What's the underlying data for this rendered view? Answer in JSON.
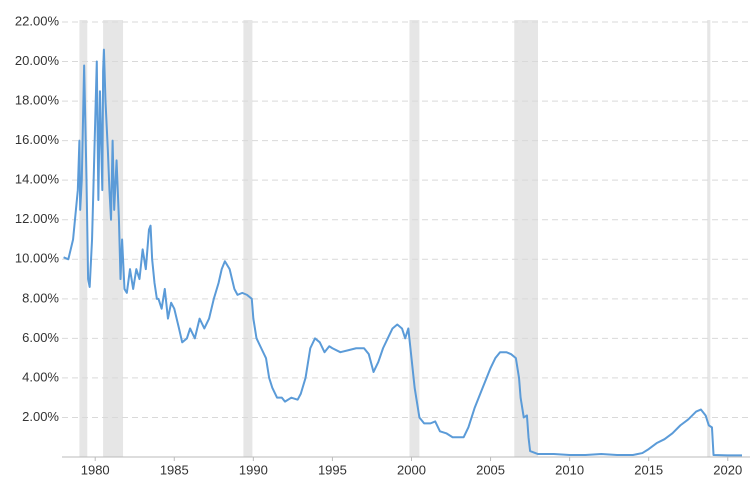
{
  "chart_data": {
    "type": "line",
    "x": [
      1978.0,
      1978.3,
      1978.6,
      1978.9,
      1979.0,
      1979.05,
      1979.15,
      1979.3,
      1979.45,
      1979.55,
      1979.65,
      1979.8,
      1980.0,
      1980.1,
      1980.2,
      1980.3,
      1980.45,
      1980.5,
      1980.55,
      1980.65,
      1980.8,
      1980.9,
      1981.0,
      1981.1,
      1981.2,
      1981.35,
      1981.5,
      1981.6,
      1981.7,
      1981.85,
      1982.0,
      1982.2,
      1982.4,
      1982.6,
      1982.8,
      1983.0,
      1983.2,
      1983.4,
      1983.5,
      1983.6,
      1983.75,
      1983.9,
      1984.0,
      1984.2,
      1984.4,
      1984.6,
      1984.8,
      1985.0,
      1985.3,
      1985.5,
      1985.8,
      1986.0,
      1986.3,
      1986.6,
      1986.9,
      1987.2,
      1987.5,
      1987.8,
      1988.0,
      1988.2,
      1988.5,
      1988.8,
      1989.0,
      1989.3,
      1989.6,
      1989.9,
      1990.0,
      1990.2,
      1990.5,
      1990.8,
      1991.0,
      1991.2,
      1991.5,
      1991.8,
      1992.0,
      1992.4,
      1992.8,
      1993.0,
      1993.3,
      1993.6,
      1993.9,
      1994.2,
      1994.5,
      1994.8,
      1995.0,
      1995.5,
      1996.0,
      1996.5,
      1997.0,
      1997.3,
      1997.6,
      1997.9,
      1998.2,
      1998.5,
      1998.8,
      1999.1,
      1999.4,
      1999.6,
      1999.8,
      2000.0,
      2000.2,
      2000.5,
      2000.8,
      2001.2,
      2001.5,
      2001.8,
      2002.2,
      2002.6,
      2003.0,
      2003.3,
      2003.6,
      2004.0,
      2004.5,
      2005.0,
      2005.3,
      2005.6,
      2006.0,
      2006.3,
      2006.6,
      2006.8,
      2006.9,
      2007.1,
      2007.3,
      2007.4,
      2007.5,
      2008.0,
      2009.0,
      2010.0,
      2011.0,
      2012.0,
      2013.0,
      2014.0,
      2014.6,
      2015.0,
      2015.5,
      2016.0,
      2016.5,
      2017.0,
      2017.5,
      2018.0,
      2018.3,
      2018.6,
      2018.8,
      2019.0,
      2019.1,
      2020.0,
      2020.9
    ],
    "series": [
      {
        "color": "#5b9bd8",
        "values": [
          10.1,
          10.0,
          11.0,
          13.5,
          16.0,
          12.5,
          14.0,
          19.8,
          14.0,
          9.0,
          8.6,
          11.0,
          17.0,
          20.0,
          13.0,
          18.5,
          13.5,
          19.5,
          20.6,
          18.0,
          15.5,
          13.5,
          12.0,
          16.0,
          12.5,
          15.0,
          12.0,
          9.0,
          11.0,
          8.5,
          8.3,
          9.5,
          8.5,
          9.5,
          9.0,
          10.5,
          9.5,
          11.5,
          11.7,
          10.0,
          8.8,
          8.0,
          8.0,
          7.5,
          8.5,
          7.0,
          7.8,
          7.5,
          6.5,
          5.8,
          6.0,
          6.5,
          6.0,
          7.0,
          6.5,
          7.0,
          8.0,
          8.8,
          9.5,
          9.9,
          9.5,
          8.5,
          8.2,
          8.3,
          8.2,
          8.0,
          7.0,
          6.0,
          5.5,
          5.0,
          4.0,
          3.5,
          3.0,
          3.0,
          2.8,
          3.0,
          2.9,
          3.2,
          4.0,
          5.5,
          6.0,
          5.8,
          5.3,
          5.6,
          5.5,
          5.3,
          5.4,
          5.5,
          5.5,
          5.2,
          4.3,
          4.8,
          5.5,
          6.0,
          6.5,
          6.7,
          6.5,
          6.0,
          6.5,
          5.0,
          3.5,
          2.0,
          1.7,
          1.7,
          1.8,
          1.3,
          1.2,
          1.0,
          1.0,
          1.0,
          1.5,
          2.5,
          3.5,
          4.5,
          5.0,
          5.3,
          5.3,
          5.2,
          5.0,
          4.0,
          3.0,
          2.0,
          2.1,
          1.0,
          0.3,
          0.15,
          0.15,
          0.1,
          0.1,
          0.15,
          0.1,
          0.1,
          0.2,
          0.4,
          0.7,
          0.9,
          1.2,
          1.6,
          1.9,
          2.3,
          2.4,
          2.1,
          1.6,
          1.5,
          0.1,
          0.08,
          0.08
        ]
      }
    ],
    "recessions": [
      [
        1979.0,
        1979.5
      ],
      [
        1980.5,
        1981.76
      ],
      [
        1989.37,
        1989.94
      ],
      [
        1999.87,
        2000.5
      ],
      [
        2006.5,
        2008.0
      ],
      [
        2018.7,
        2018.9
      ]
    ],
    "recession_color": "#e6e6e6",
    "xlim": [
      1977.9,
      2020.9
    ],
    "ylim": [
      0,
      22
    ],
    "xticks": [
      1980,
      1985,
      1990,
      1995,
      2000,
      2005,
      2010,
      2015,
      2020
    ],
    "yticks": [
      {
        "value": 2,
        "label": "2.00%"
      },
      {
        "value": 4,
        "label": "4.00%"
      },
      {
        "value": 6,
        "label": "6.00%"
      },
      {
        "value": 8,
        "label": "8.00%"
      },
      {
        "value": 10,
        "label": "10.00%"
      },
      {
        "value": 12,
        "label": "12.00%"
      },
      {
        "value": 14,
        "label": "14.00%"
      },
      {
        "value": 16,
        "label": "16.00%"
      },
      {
        "value": 18,
        "label": "18.00%"
      },
      {
        "value": 20,
        "label": "20.00%"
      },
      {
        "value": 22,
        "label": "22.00%"
      }
    ],
    "grid": true
  }
}
